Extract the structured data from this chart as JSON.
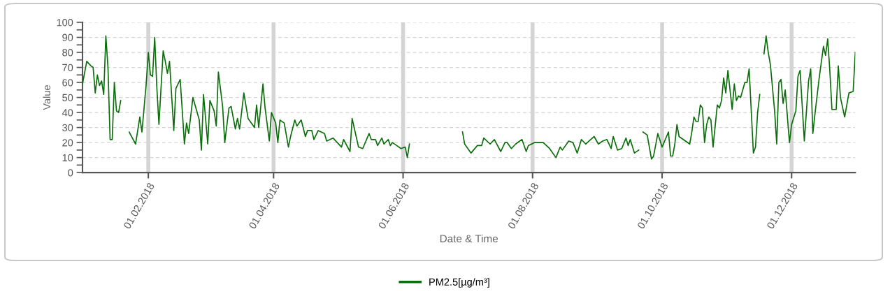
{
  "chart_data": {
    "type": "line",
    "xlabel": "Date & Time",
    "ylabel": "Value",
    "xlim": [
      "2018-01-01",
      "2018-12-31"
    ],
    "xticks": [
      {
        "value": "2018-02-01",
        "label": "01.02.2018"
      },
      {
        "value": "2018-04-01",
        "label": "01.04.2018"
      },
      {
        "value": "2018-06-01",
        "label": "01.06.2018"
      },
      {
        "value": "2018-08-01",
        "label": "01.08.2018"
      },
      {
        "value": "2018-10-01",
        "label": "01.10.2018"
      },
      {
        "value": "2018-12-01",
        "label": "01.12.2018"
      }
    ],
    "ylim": [
      0,
      100
    ],
    "yticks": [
      0,
      {
        "value": 5,
        "label": null
      },
      10,
      {
        "value": 15,
        "label": null
      },
      20,
      {
        "value": 25,
        "label": null
      },
      30,
      {
        "value": 35,
        "label": null
      },
      40,
      {
        "value": 45,
        "label": null
      },
      50,
      {
        "value": 55,
        "label": null
      },
      60,
      {
        "value": 65,
        "label": null
      },
      70,
      {
        "value": 75,
        "label": null
      },
      80,
      {
        "value": 85,
        "label": null
      },
      90,
      {
        "value": 95,
        "label": null
      },
      100
    ],
    "grid": true,
    "legend": "bottom",
    "marker": "none",
    "line_style": "solid",
    "series": [
      {
        "name": "PM2.5[µg/m³]",
        "color": "#0a6e0a",
        "x": [
          "2018-01-01",
          "2018-01-03",
          "2018-01-05",
          "2018-01-06",
          "2018-01-07",
          "2018-01-08",
          "2018-01-09",
          "2018-01-10",
          "2018-01-11",
          "2018-01-12",
          "2018-01-13",
          "2018-01-14",
          "2018-01-15",
          "2018-01-16",
          "2018-01-17",
          "2018-01-18",
          "2018-01-19",
          "2018-01-21",
          "2018-01-23",
          "2018-01-26",
          "2018-01-28",
          "2018-01-29",
          "2018-01-31",
          "2018-02-01",
          "2018-02-02",
          "2018-02-03",
          "2018-02-04",
          "2018-02-05",
          "2018-02-06",
          "2018-02-08",
          "2018-02-09",
          "2018-02-10",
          "2018-02-11",
          "2018-02-13",
          "2018-02-14",
          "2018-02-16",
          "2018-02-17",
          "2018-02-18",
          "2018-02-19",
          "2018-02-20",
          "2018-02-22",
          "2018-02-25",
          "2018-02-26",
          "2018-02-27",
          "2018-03-01",
          "2018-03-02",
          "2018-03-04",
          "2018-03-05",
          "2018-03-06",
          "2018-03-08",
          "2018-03-09",
          "2018-03-11",
          "2018-03-12",
          "2018-03-14",
          "2018-03-15",
          "2018-03-16",
          "2018-03-18",
          "2018-03-20",
          "2018-03-23",
          "2018-03-24",
          "2018-03-25",
          "2018-03-27",
          "2018-03-28",
          "2018-03-30",
          "2018-03-31",
          "2018-04-02",
          "2018-04-03",
          "2018-04-04",
          "2018-04-06",
          "2018-04-08",
          "2018-04-09",
          "2018-04-11",
          "2018-04-12",
          "2018-04-14",
          "2018-04-16",
          "2018-04-17",
          "2018-04-19",
          "2018-04-20",
          "2018-04-22",
          "2018-04-25",
          "2018-04-26",
          "2018-04-29",
          "2018-05-03",
          "2018-05-04",
          "2018-05-07",
          "2018-05-08",
          "2018-05-11",
          "2018-05-13",
          "2018-05-16",
          "2018-05-17",
          "2018-05-19",
          "2018-05-20",
          "2018-05-22",
          "2018-05-23",
          "2018-05-25",
          "2018-05-26",
          "2018-05-27",
          "2018-05-29",
          "2018-05-31",
          "2018-06-02",
          "2018-06-03",
          "2018-06-04",
          "2018-06-15",
          "2018-06-29",
          "2018-06-30",
          "2018-07-03",
          "2018-07-06",
          "2018-07-07",
          "2018-07-08",
          "2018-07-09",
          "2018-07-12",
          "2018-07-14",
          "2018-07-17",
          "2018-07-19",
          "2018-07-20",
          "2018-07-22",
          "2018-07-24",
          "2018-07-27",
          "2018-07-29",
          "2018-07-30",
          "2018-08-02",
          "2018-08-06",
          "2018-08-09",
          "2018-08-12",
          "2018-08-14",
          "2018-08-15",
          "2018-08-18",
          "2018-08-20",
          "2018-08-22",
          "2018-08-24",
          "2018-08-26",
          "2018-08-30",
          "2018-09-01",
          "2018-09-03",
          "2018-09-05",
          "2018-09-07",
          "2018-09-08",
          "2018-09-10",
          "2018-09-12",
          "2018-09-14",
          "2018-09-15",
          "2018-09-16",
          "2018-09-18",
          "2018-09-20",
          "2018-09-21",
          "2018-09-22",
          "2018-09-24",
          "2018-09-26",
          "2018-09-27",
          "2018-09-29",
          "2018-10-01",
          "2018-10-04",
          "2018-10-05",
          "2018-10-06",
          "2018-10-07",
          "2018-10-08",
          "2018-10-09",
          "2018-10-14",
          "2018-10-15",
          "2018-10-16",
          "2018-10-17",
          "2018-10-18",
          "2018-10-19",
          "2018-10-20",
          "2018-10-21",
          "2018-10-22",
          "2018-10-23",
          "2018-10-24",
          "2018-10-25",
          "2018-10-27",
          "2018-10-28",
          "2018-10-29",
          "2018-10-30",
          "2018-10-31",
          "2018-11-01",
          "2018-11-03",
          "2018-11-04",
          "2018-11-05",
          "2018-11-06",
          "2018-11-07",
          "2018-11-09",
          "2018-11-10",
          "2018-11-11",
          "2018-11-12",
          "2018-11-13",
          "2018-11-14",
          "2018-11-15",
          "2018-11-16",
          "2018-11-17",
          "2018-11-18",
          "2018-11-19",
          "2018-11-20",
          "2018-11-21",
          "2018-11-23",
          "2018-11-24",
          "2018-11-25",
          "2018-11-26",
          "2018-11-27",
          "2018-11-28",
          "2018-11-30",
          "2018-12-01",
          "2018-12-03",
          "2018-12-04",
          "2018-12-05",
          "2018-12-07",
          "2018-12-08",
          "2018-12-09",
          "2018-12-10",
          "2018-12-11",
          "2018-12-12",
          "2018-12-14",
          "2018-12-16",
          "2018-12-17",
          "2018-12-18",
          "2018-12-19",
          "2018-12-20",
          "2018-12-22",
          "2018-12-23",
          "2018-12-24",
          "2018-12-26",
          "2018-12-28",
          "2018-12-30",
          "2018-12-31"
        ],
        "values": [
          59,
          74,
          71,
          70,
          53,
          65,
          58,
          61,
          52,
          91,
          70,
          22,
          22,
          60,
          41,
          40,
          48,
          null,
          27,
          19,
          37,
          27,
          59,
          80,
          65,
          64,
          90,
          57,
          32,
          81,
          74,
          66,
          74,
          28,
          56,
          62,
          41,
          19,
          33,
          26,
          50,
          35,
          15,
          52,
          19,
          48,
          41,
          31,
          67,
          44,
          20,
          43,
          44,
          29,
          36,
          29,
          53,
          36,
          30,
          45,
          30,
          59,
          43,
          21,
          40,
          33,
          20,
          35,
          33,
          17,
          24,
          35,
          31,
          35,
          24,
          28,
          28,
          22,
          28,
          26,
          21,
          23,
          17,
          22,
          14,
          36,
          17,
          16,
          26,
          22,
          22,
          18,
          23,
          19,
          22,
          18,
          20,
          18,
          16,
          17,
          10,
          19,
          null,
          27,
          19,
          13,
          18,
          18,
          18,
          23,
          19,
          22,
          14,
          20,
          20,
          16,
          19,
          22,
          14,
          18,
          20,
          20,
          16,
          10,
          17,
          15,
          21,
          20,
          13,
          22,
          19,
          24,
          19,
          21,
          22,
          16,
          24,
          15,
          16,
          23,
          18,
          22,
          13,
          15,
          null,
          27,
          25,
          9,
          11,
          26,
          17,
          27,
          11,
          11,
          19,
          32,
          24,
          19,
          27,
          37,
          34,
          34,
          45,
          43,
          20,
          32,
          37,
          35,
          17,
          45,
          43,
          48,
          63,
          53,
          68,
          42,
          59,
          48,
          51,
          50,
          60,
          60,
          69,
          41,
          13,
          17,
          40,
          52,
          null,
          79,
          91,
          80,
          72,
          41,
          19,
          60,
          62,
          46,
          55,
          20,
          32,
          41,
          64,
          68,
          21,
          41,
          61,
          69,
          26,
          39,
          63,
          84,
          78,
          89,
          68,
          42,
          42,
          71,
          50,
          37,
          53,
          54,
          80
        ]
      }
    ]
  }
}
